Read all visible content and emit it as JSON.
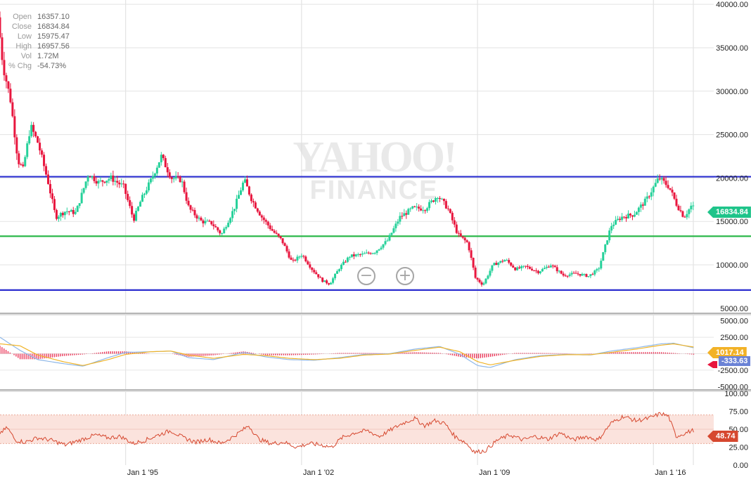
{
  "ohlc": {
    "rows": [
      {
        "key": "Open",
        "value": "16357.10"
      },
      {
        "key": "Close",
        "value": "16834.84"
      },
      {
        "key": "Low",
        "value": "15975.47"
      },
      {
        "key": "High",
        "value": "16957.56"
      },
      {
        "key": "Vol",
        "value": "1.72M"
      },
      {
        "key": "% Chg",
        "value": "-54.73%"
      }
    ]
  },
  "watermark": {
    "line1": "YAHOO!",
    "line2": "FINANCE"
  },
  "colors": {
    "up": "#26d19a",
    "down": "#e8163e",
    "resistance": "#2b2ed0",
    "support": "#2eb84b",
    "macd": "#8fb8e8",
    "signal": "#f0b429",
    "rsi": "#d6482f",
    "rsi_band": "#fbe3dd"
  },
  "chart_data": [
    {
      "type": "candlestick",
      "x_ticks": [
        "Jan 1 '95",
        "Jan 1 '02",
        "Jan 1 '09",
        "Jan 1 '16"
      ],
      "x_tick_years": [
        1995,
        2002,
        2009,
        2016
      ],
      "x_range": [
        1990.0,
        2018.4
      ],
      "y_ticks": [
        "40000.00",
        "35000.00",
        "30000.00",
        "25000.00",
        "20000.00",
        "15000.00",
        "10000.00",
        "5000.00"
      ],
      "ylim": [
        4500,
        40500
      ],
      "last_price": "16834.84",
      "horizontal_lines": [
        {
          "value": 20150,
          "color": "resistance"
        },
        {
          "value": 13300,
          "color": "support"
        },
        {
          "value": 7100,
          "color": "resistance"
        }
      ],
      "keypoints": [
        [
          1990.0,
          38500
        ],
        [
          1990.2,
          33000
        ],
        [
          1990.5,
          29000
        ],
        [
          1990.8,
          22000
        ],
        [
          1991.0,
          21000
        ],
        [
          1991.3,
          26000
        ],
        [
          1991.6,
          24000
        ],
        [
          1992.0,
          19500
        ],
        [
          1992.3,
          15500
        ],
        [
          1992.7,
          16200
        ],
        [
          1993.1,
          16000
        ],
        [
          1993.6,
          20500
        ],
        [
          1994.0,
          19500
        ],
        [
          1994.5,
          20000
        ],
        [
          1995.0,
          19000
        ],
        [
          1995.4,
          15200
        ],
        [
          1995.7,
          17500
        ],
        [
          1996.1,
          19800
        ],
        [
          1996.5,
          22500
        ],
        [
          1996.9,
          20000
        ],
        [
          1997.3,
          19800
        ],
        [
          1997.6,
          16500
        ],
        [
          1998.1,
          15000
        ],
        [
          1998.5,
          14800
        ],
        [
          1998.9,
          13500
        ],
        [
          1999.4,
          16500
        ],
        [
          1999.8,
          19800
        ],
        [
          2000.1,
          17500
        ],
        [
          2000.5,
          15500
        ],
        [
          2000.9,
          14000
        ],
        [
          2001.3,
          12800
        ],
        [
          2001.7,
          10300
        ],
        [
          2002.1,
          11200
        ],
        [
          2002.5,
          9500
        ],
        [
          2002.9,
          8200
        ],
        [
          2003.2,
          7800
        ],
        [
          2003.6,
          9700
        ],
        [
          2004.0,
          11000
        ],
        [
          2004.5,
          11200
        ],
        [
          2005.0,
          11500
        ],
        [
          2005.5,
          12800
        ],
        [
          2006.0,
          15500
        ],
        [
          2006.5,
          16500
        ],
        [
          2007.0,
          16500
        ],
        [
          2007.5,
          18000
        ],
        [
          2007.9,
          16500
        ],
        [
          2008.3,
          13500
        ],
        [
          2008.7,
          12500
        ],
        [
          2009.0,
          8500
        ],
        [
          2009.3,
          7700
        ],
        [
          2009.7,
          10000
        ],
        [
          2010.2,
          10600
        ],
        [
          2010.6,
          9500
        ],
        [
          2011.0,
          9800
        ],
        [
          2011.5,
          9200
        ],
        [
          2012.0,
          10000
        ],
        [
          2012.5,
          8800
        ],
        [
          2013.0,
          9000
        ],
        [
          2013.5,
          8700
        ],
        [
          2013.9,
          9500
        ],
        [
          2014.4,
          14500
        ],
        [
          2014.8,
          15500
        ],
        [
          2015.3,
          15800
        ],
        [
          2015.8,
          17500
        ],
        [
          2016.3,
          20000
        ],
        [
          2016.7,
          19000
        ],
        [
          2017.0,
          17000
        ],
        [
          2017.3,
          15500
        ],
        [
          2017.6,
          16834
        ]
      ]
    },
    {
      "type": "line",
      "name": "MACD",
      "y_ticks": [
        "5000.00",
        "2500.00",
        "-2500.00",
        "-5000.00"
      ],
      "ylim": [
        -5500,
        5500
      ],
      "value_labels": {
        "signal": "1017.14",
        "macd": "",
        "histogram": "-333.63"
      },
      "macd_keypoints": [
        [
          1990,
          2500
        ],
        [
          1990.8,
          500
        ],
        [
          1991.5,
          -900
        ],
        [
          1992.5,
          -1500
        ],
        [
          1993.3,
          -1900
        ],
        [
          1994.3,
          -600
        ],
        [
          1995,
          200
        ],
        [
          1996,
          300
        ],
        [
          1996.8,
          400
        ],
        [
          1997.5,
          -600
        ],
        [
          1998.5,
          -900
        ],
        [
          1999.7,
          200
        ],
        [
          2000.6,
          -500
        ],
        [
          2001.5,
          -900
        ],
        [
          2002.5,
          -1000
        ],
        [
          2003.5,
          -600
        ],
        [
          2004.5,
          -100
        ],
        [
          2005.5,
          0
        ],
        [
          2006.5,
          700
        ],
        [
          2007.5,
          1100
        ],
        [
          2008.3,
          -100
        ],
        [
          2009,
          -1800
        ],
        [
          2009.5,
          -2100
        ],
        [
          2010.5,
          -900
        ],
        [
          2011.5,
          -300
        ],
        [
          2012.5,
          -100
        ],
        [
          2013.5,
          -200
        ],
        [
          2014.3,
          400
        ],
        [
          2015.3,
          900
        ],
        [
          2016.3,
          1500
        ],
        [
          2016.8,
          1600
        ],
        [
          2017.6,
          900
        ]
      ],
      "signal_keypoints": [
        [
          1990,
          1500
        ],
        [
          1990.8,
          1200
        ],
        [
          1991.5,
          -200
        ],
        [
          1992.5,
          -1200
        ],
        [
          1993.3,
          -1800
        ],
        [
          1994.3,
          -900
        ],
        [
          1995,
          -100
        ],
        [
          1996,
          300
        ],
        [
          1996.8,
          400
        ],
        [
          1997.5,
          -200
        ],
        [
          1998.5,
          -700
        ],
        [
          1999.7,
          -100
        ],
        [
          2000.6,
          -300
        ],
        [
          2001.5,
          -700
        ],
        [
          2002.5,
          -900
        ],
        [
          2003.5,
          -700
        ],
        [
          2004.5,
          -200
        ],
        [
          2005.5,
          -50
        ],
        [
          2006.5,
          500
        ],
        [
          2007.5,
          1000
        ],
        [
          2008.3,
          300
        ],
        [
          2009,
          -1200
        ],
        [
          2009.5,
          -1700
        ],
        [
          2010.5,
          -1000
        ],
        [
          2011.5,
          -400
        ],
        [
          2012.5,
          -150
        ],
        [
          2013.5,
          -150
        ],
        [
          2014.3,
          200
        ],
        [
          2015.3,
          700
        ],
        [
          2016.3,
          1300
        ],
        [
          2016.8,
          1500
        ],
        [
          2017.6,
          1017
        ]
      ]
    },
    {
      "type": "line",
      "name": "RSI",
      "y_ticks": [
        "100.00",
        "75.00",
        "50.00",
        "25.00",
        "0.00"
      ],
      "ylim": [
        0,
        100
      ],
      "band": [
        30,
        70
      ],
      "last_value": "48.74",
      "keypoints": [
        [
          1990,
          45
        ],
        [
          1990.3,
          52
        ],
        [
          1990.6,
          35
        ],
        [
          1991,
          32
        ],
        [
          1991.5,
          38
        ],
        [
          1992,
          35
        ],
        [
          1992.6,
          28
        ],
        [
          1993.2,
          35
        ],
        [
          1993.8,
          42
        ],
        [
          1994.3,
          38
        ],
        [
          1994.8,
          40
        ],
        [
          1995.3,
          30
        ],
        [
          1995.8,
          35
        ],
        [
          1996.3,
          42
        ],
        [
          1996.8,
          48
        ],
        [
          1997.3,
          38
        ],
        [
          1997.8,
          32
        ],
        [
          1998.3,
          36
        ],
        [
          1998.8,
          30
        ],
        [
          1999.3,
          40
        ],
        [
          1999.9,
          55
        ],
        [
          2000.3,
          36
        ],
        [
          2000.8,
          30
        ],
        [
          2001.3,
          32
        ],
        [
          2001.8,
          25
        ],
        [
          2002.3,
          30
        ],
        [
          2002.8,
          28
        ],
        [
          2003.2,
          25
        ],
        [
          2003.6,
          38
        ],
        [
          2004.1,
          45
        ],
        [
          2004.6,
          48
        ],
        [
          2005.1,
          40
        ],
        [
          2005.6,
          50
        ],
        [
          2006.0,
          58
        ],
        [
          2006.5,
          65
        ],
        [
          2006.9,
          55
        ],
        [
          2007.3,
          62
        ],
        [
          2007.7,
          58
        ],
        [
          2008.1,
          40
        ],
        [
          2008.5,
          32
        ],
        [
          2008.9,
          18
        ],
        [
          2009.3,
          20
        ],
        [
          2009.8,
          35
        ],
        [
          2010.3,
          42
        ],
        [
          2010.8,
          35
        ],
        [
          2011.3,
          40
        ],
        [
          2011.8,
          36
        ],
        [
          2012.3,
          45
        ],
        [
          2012.8,
          35
        ],
        [
          2013.3,
          40
        ],
        [
          2013.8,
          35
        ],
        [
          2014.3,
          58
        ],
        [
          2014.8,
          68
        ],
        [
          2015.3,
          62
        ],
        [
          2015.8,
          65
        ],
        [
          2016.3,
          72
        ],
        [
          2016.6,
          68
        ],
        [
          2016.9,
          40
        ],
        [
          2017.3,
          45
        ],
        [
          2017.6,
          48.74
        ]
      ]
    }
  ]
}
